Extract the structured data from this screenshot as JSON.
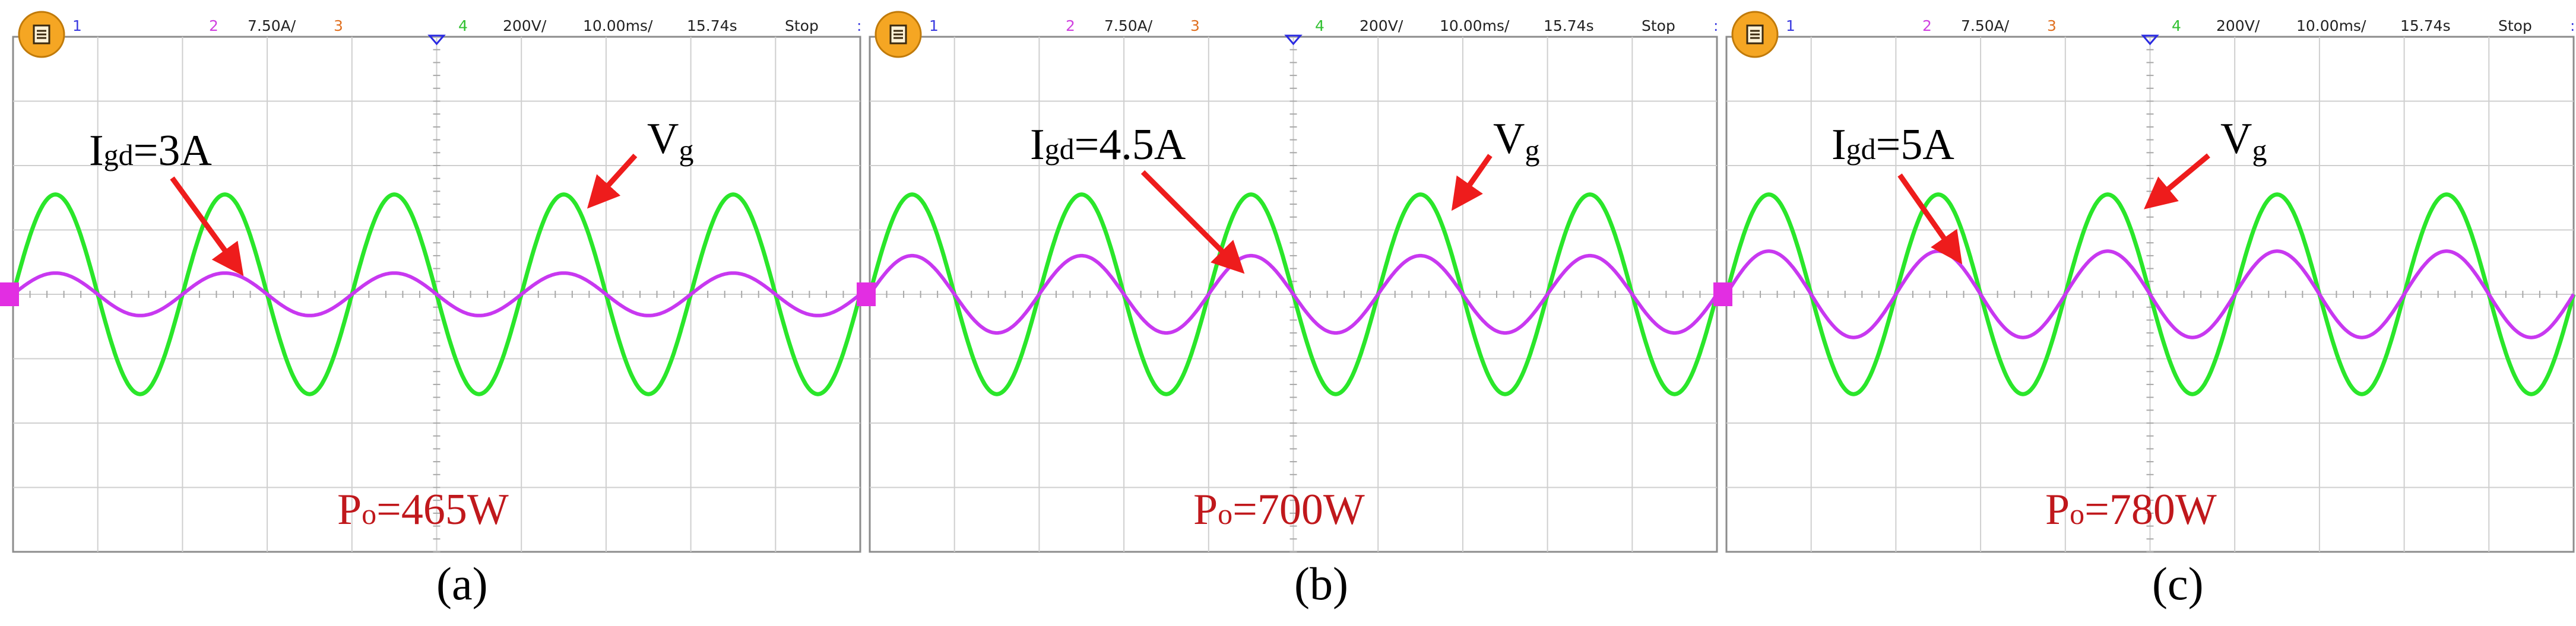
{
  "figure": {
    "panels": [
      {
        "caption": "(a)",
        "status": {
          "ch1_label": "1",
          "ch2_label": "2",
          "ch2_scale": "7.50A/",
          "ch3_label": "3",
          "ch4_label": "4",
          "ch4_scale": "200V/",
          "timebase": "10.00ms/",
          "trigger_time": "15.74s",
          "run_state": "Stop"
        },
        "current_annotation": {
          "main": "I",
          "sub": "gd",
          "value": "=3A"
        },
        "voltage_annotation": {
          "main": "V",
          "sub": "g"
        },
        "power_annotation": {
          "main": "P",
          "sub": "o",
          "value": "=465W"
        }
      },
      {
        "caption": "(b)",
        "status": {
          "ch1_label": "1",
          "ch2_label": "2",
          "ch2_scale": "7.50A/",
          "ch3_label": "3",
          "ch4_label": "4",
          "ch4_scale": "200V/",
          "timebase": "10.00ms/",
          "trigger_time": "15.74s",
          "run_state": "Stop"
        },
        "current_annotation": {
          "main": "I",
          "sub": "gd",
          "value": "=4.5A"
        },
        "voltage_annotation": {
          "main": "V",
          "sub": "g"
        },
        "power_annotation": {
          "main": "P",
          "sub": "o",
          "value": "=700W"
        }
      },
      {
        "caption": "(c)",
        "status": {
          "ch1_label": "1",
          "ch2_label": "2",
          "ch2_scale": "7.50A/",
          "ch3_label": "3",
          "ch4_label": "4",
          "ch4_scale": "200V/",
          "timebase": "10.00ms/",
          "trigger_time": "15.74s",
          "run_state": "Stop"
        },
        "current_annotation": {
          "main": "I",
          "sub": "gd",
          "value": "=5A"
        },
        "voltage_annotation": {
          "main": "V",
          "sub": "g"
        },
        "power_annotation": {
          "main": "P",
          "sub": "o",
          "value": "=780W"
        }
      }
    ]
  },
  "chart_data": [
    {
      "type": "line",
      "title": "(a)",
      "x_unit": "ms",
      "x_range": [
        0,
        100
      ],
      "y_unit": "div",
      "y_range": [
        -4,
        4
      ],
      "series": [
        {
          "name": "Vg (ch4, 200V/div)",
          "amplitude_div": 1.55,
          "frequency_hz": 50,
          "phase_deg": 0
        },
        {
          "name": "Igd (ch2, 7.50A/div)",
          "amplitude_div": 0.33,
          "frequency_hz": 50,
          "phase_deg": 0
        }
      ],
      "annotations": [
        "Igd=3A",
        "Vg",
        "Po=465W"
      ]
    },
    {
      "type": "line",
      "title": "(b)",
      "x_unit": "ms",
      "x_range": [
        0,
        100
      ],
      "y_unit": "div",
      "y_range": [
        -4,
        4
      ],
      "series": [
        {
          "name": "Vg (ch4, 200V/div)",
          "amplitude_div": 1.55,
          "frequency_hz": 50,
          "phase_deg": 0
        },
        {
          "name": "Igd (ch2, 7.50A/div)",
          "amplitude_div": 0.6,
          "frequency_hz": 50,
          "phase_deg": 0
        }
      ],
      "annotations": [
        "Igd=4.5A",
        "Vg",
        "Po=700W"
      ]
    },
    {
      "type": "line",
      "title": "(c)",
      "x_unit": "ms",
      "x_range": [
        0,
        100
      ],
      "y_unit": "div",
      "y_range": [
        -4,
        4
      ],
      "series": [
        {
          "name": "Vg (ch4, 200V/div)",
          "amplitude_div": 1.55,
          "frequency_hz": 50,
          "phase_deg": 0
        },
        {
          "name": "Igd (ch2, 7.50A/div)",
          "amplitude_div": 0.67,
          "frequency_hz": 50,
          "phase_deg": 0
        }
      ],
      "annotations": [
        "Igd=5A",
        "Vg",
        "Po=780W"
      ]
    }
  ]
}
